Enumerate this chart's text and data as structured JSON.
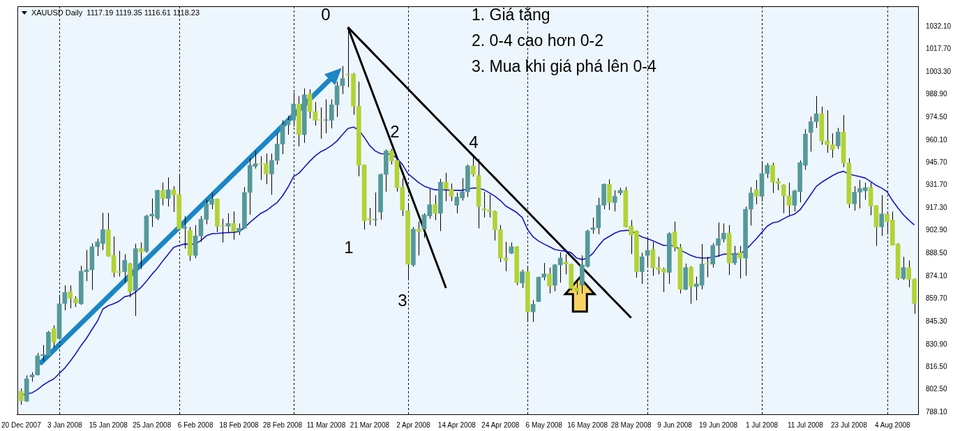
{
  "chart_data": {
    "type": "candlestick",
    "title": "XAUUSD Daily  1117.19 1119.35 1116.61 1118.23",
    "categories": [
      "20 Dec 2007",
      null,
      null,
      null,
      null,
      null,
      null,
      null,
      "3 Jan 2008",
      null,
      null,
      null,
      null,
      null,
      null,
      null,
      "15 Jan 2008",
      null,
      null,
      null,
      null,
      null,
      null,
      null,
      "25 Jan 2008",
      null,
      null,
      null,
      null,
      null,
      null,
      null,
      "6 Feb 2008",
      null,
      null,
      null,
      null,
      null,
      null,
      null,
      "18 Feb 2008",
      null,
      null,
      null,
      null,
      null,
      null,
      null,
      "28 Feb 2008",
      null,
      null,
      null,
      null,
      null,
      null,
      null,
      "11 Mar 2008",
      null,
      null,
      null,
      null,
      null,
      null,
      null,
      "21 Mar 2008",
      null,
      null,
      null,
      null,
      null,
      null,
      null,
      "2 Apr 2008",
      null,
      null,
      null,
      null,
      null,
      null,
      null,
      "14 Apr 2008",
      null,
      null,
      null,
      null,
      null,
      null,
      null,
      "24 Apr 2008",
      null,
      null,
      null,
      null,
      null,
      null,
      null,
      "6 May 2008",
      null,
      null,
      null,
      null,
      null,
      null,
      null,
      "16 May 2008",
      null,
      null,
      null,
      null,
      null,
      null,
      null,
      "28 May 2008",
      null,
      null,
      null,
      null,
      null,
      null,
      null,
      "9 Jun 2008",
      null,
      null,
      null,
      null,
      null,
      null,
      null,
      "19 Jun 2008",
      null,
      null,
      null,
      null,
      null,
      null,
      null,
      "1 Jul 2008",
      null,
      null,
      null,
      null,
      null,
      null,
      null,
      "11 Jul 2008",
      null,
      null,
      null,
      null,
      null,
      null,
      null,
      "23 Jul 2008",
      null,
      null,
      null,
      null,
      null,
      null,
      null,
      "4 Aug 2008",
      null,
      null,
      null,
      null
    ],
    "ohlc": [
      [
        801.3,
        803.0,
        792.7,
        795.3
      ],
      [
        795.0,
        811.3,
        794.5,
        809.1
      ],
      [
        810.3,
        813.3,
        807.3,
        811.6
      ],
      [
        811.6,
        825.4,
        811.3,
        823.7
      ],
      [
        823.7,
        830.5,
        820.2,
        824.5
      ],
      [
        824.0,
        839.4,
        823.7,
        838.6
      ],
      [
        840.8,
        842.9,
        828.8,
        832.2
      ],
      [
        834.6,
        862.3,
        833.9,
        856.6
      ],
      [
        856.8,
        868.3,
        852.5,
        863.8
      ],
      [
        864.3,
        868.3,
        853.7,
        860.0
      ],
      [
        859.7,
        861.4,
        854.6,
        857.1
      ],
      [
        856.6,
        880.7,
        855.9,
        877.2
      ],
      [
        876.9,
        890.6,
        870.9,
        878.1
      ],
      [
        878.1,
        894.9,
        865.4,
        892.7
      ],
      [
        892.7,
        897.8,
        886.8,
        895.8
      ],
      [
        894.7,
        914.1,
        890.6,
        903.5
      ],
      [
        903.5,
        914.1,
        886.3,
        886.7
      ],
      [
        887.2,
        899.2,
        873.4,
        876.4
      ],
      [
        876.9,
        890.1,
        873.8,
        876.4
      ],
      [
        876.9,
        888.0,
        870.0,
        884.1
      ],
      [
        882.0,
        882.5,
        860.6,
        864.3
      ],
      [
        864.9,
        894.6,
        848.9,
        891.5
      ],
      [
        891.5,
        895.4,
        878.6,
        889.4
      ],
      [
        889.8,
        912.9,
        888.9,
        912.1
      ],
      [
        912.1,
        923.2,
        905.2,
        913.3
      ],
      [
        910.7,
        928.7,
        909.5,
        928.4
      ],
      [
        928.4,
        933.2,
        918.9,
        923.2
      ],
      [
        923.2,
        936.6,
        918.1,
        928.7
      ],
      [
        928.7,
        931.0,
        914.7,
        925.3
      ],
      [
        925.8,
        937.8,
        903.5,
        903.8
      ],
      [
        904.3,
        912.1,
        891.5,
        905.2
      ],
      [
        903.0,
        905.2,
        883.7,
        887.2
      ],
      [
        887.2,
        906.4,
        885.5,
        899.5
      ],
      [
        899.5,
        912.1,
        895.8,
        910.0
      ],
      [
        910.0,
        922.4,
        906.9,
        919.8
      ],
      [
        919.5,
        926.7,
        916.4,
        922.9
      ],
      [
        922.9,
        923.2,
        901.8,
        905.7
      ],
      [
        906.1,
        910.4,
        895.4,
        905.7
      ],
      [
        905.7,
        913.8,
        901.3,
        907.4
      ],
      [
        907.4,
        915.0,
        897.1,
        902.3
      ],
      [
        902.3,
        907.4,
        900.1,
        904.4
      ],
      [
        904.4,
        930.4,
        904.0,
        927.0
      ],
      [
        927.0,
        949.0,
        912.9,
        944.2
      ],
      [
        943.5,
        953.3,
        942.1,
        945.2
      ],
      [
        945.2,
        949.9,
        934.9,
        944.9
      ],
      [
        945.2,
        951.6,
        932.2,
        938.7
      ],
      [
        938.7,
        951.6,
        925.5,
        947.3
      ],
      [
        947.3,
        964.4,
        944.7,
        957.6
      ],
      [
        957.6,
        972.7,
        951.2,
        969.9
      ],
      [
        969.9,
        975.6,
        963.6,
        972.7
      ],
      [
        972.7,
        990.2,
        968.7,
        983.0
      ],
      [
        983.0,
        988.0,
        956.2,
        963.6
      ],
      [
        963.6,
        992.8,
        958.4,
        988.8
      ],
      [
        989.3,
        992.3,
        973.9,
        978.2
      ],
      [
        978.2,
        984.2,
        969.3,
        972.7
      ],
      [
        973.0,
        980.8,
        961.0,
        972.7
      ],
      [
        972.7,
        985.9,
        964.4,
        973.0
      ],
      [
        972.7,
        985.9,
        967.5,
        982.5
      ],
      [
        982.5,
        997.1,
        974.7,
        994.5
      ],
      [
        994.5,
        1007.0,
        989.3,
        999.1
      ],
      [
        1001.9,
        1031.5,
        993.6,
        1001.5
      ],
      [
        1001.9,
        1002.6,
        976.1,
        981.6
      ],
      [
        981.6,
        997.1,
        937.3,
        944.2
      ],
      [
        944.4,
        944.7,
        903.5,
        909.2
      ],
      [
        910.4,
        917.2,
        906.4,
        909.7
      ],
      [
        909.7,
        927.0,
        905.7,
        910.0
      ],
      [
        914.6,
        939.0,
        909.8,
        938.4
      ],
      [
        938.4,
        954.2,
        927.5,
        953.3
      ],
      [
        953.3,
        954.5,
        944.7,
        947.0
      ],
      [
        947.3,
        948.1,
        927.5,
        930.1
      ],
      [
        930.4,
        936.1,
        912.1,
        916.0
      ],
      [
        915.5,
        920.2,
        871.7,
        881.7
      ],
      [
        881.2,
        905.2,
        880.0,
        903.8
      ],
      [
        903.8,
        908.6,
        887.2,
        902.3
      ],
      [
        903.8,
        913.8,
        898.3,
        912.9
      ],
      [
        912.1,
        929.2,
        910.4,
        919.3
      ],
      [
        919.3,
        925.3,
        909.5,
        913.8
      ],
      [
        913.8,
        935.6,
        902.6,
        933.5
      ],
      [
        933.5,
        939.5,
        921.5,
        929.2
      ],
      [
        929.2,
        932.7,
        921.5,
        924.6
      ],
      [
        918.9,
        927.0,
        913.8,
        924.1
      ],
      [
        923.6,
        936.1,
        921.9,
        927.5
      ],
      [
        927.5,
        944.7,
        924.1,
        943.8
      ],
      [
        943.8,
        950.7,
        937.0,
        938.4
      ],
      [
        937.8,
        948.1,
        904.3,
        918.1
      ],
      [
        916.7,
        927.5,
        911.2,
        916.0
      ],
      [
        916.0,
        925.8,
        911.2,
        915.0
      ],
      [
        915.0,
        915.5,
        896.6,
        903.5
      ],
      [
        903.5,
        906.4,
        882.9,
        885.5
      ],
      [
        885.5,
        895.8,
        877.2,
        884.1
      ],
      [
        888.6,
        895.4,
        888.0,
        892.7
      ],
      [
        892.7,
        893.0,
        868.3,
        870.0
      ],
      [
        869.7,
        878.2,
        866.6,
        876.9
      ],
      [
        876.9,
        880.7,
        846.0,
        851.5
      ],
      [
        851.5,
        858.9,
        845.1,
        856.3
      ],
      [
        858.0,
        873.8,
        857.7,
        873.4
      ],
      [
        873.4,
        882.4,
        871.4,
        875.5
      ],
      [
        875.5,
        879.5,
        863.1,
        867.8
      ],
      [
        868.3,
        881.7,
        864.5,
        881.2
      ],
      [
        881.2,
        889.2,
        870.0,
        885.5
      ],
      [
        882.9,
        888.0,
        875.2,
        881.7
      ],
      [
        881.7,
        882.0,
        864.9,
        866.2
      ],
      [
        866.6,
        870.9,
        862.3,
        864.5
      ],
      [
        868.3,
        887.2,
        863.1,
        881.2
      ],
      [
        880.3,
        903.5,
        879.5,
        902.6
      ],
      [
        903.5,
        911.2,
        900.9,
        904.7
      ],
      [
        904.7,
        923.6,
        900.6,
        918.9
      ],
      [
        918.9,
        932.7,
        916.4,
        932.2
      ],
      [
        932.2,
        935.3,
        916.0,
        920.7
      ],
      [
        920.7,
        928.4,
        915.0,
        924.6
      ],
      [
        926.7,
        930.1,
        925.3,
        928.4
      ],
      [
        928.4,
        930.4,
        904.9,
        905.2
      ],
      [
        905.7,
        909.5,
        888.0,
        900.1
      ],
      [
        902.6,
        903.0,
        873.1,
        876.9
      ],
      [
        876.9,
        888.9,
        869.2,
        886.3
      ],
      [
        887.2,
        897.5,
        879.5,
        890.3
      ],
      [
        890.9,
        895.8,
        874.3,
        879.5
      ],
      [
        879.5,
        886.3,
        875.2,
        878.3
      ],
      [
        878.6,
        879.5,
        864.0,
        876.6
      ],
      [
        876.4,
        901.8,
        869.2,
        901.0
      ],
      [
        902.1,
        908.6,
        889.8,
        892.3
      ],
      [
        892.3,
        894.4,
        863.1,
        865.7
      ],
      [
        865.7,
        882.0,
        865.2,
        879.5
      ],
      [
        879.5,
        880.3,
        856.6,
        867.4
      ],
      [
        867.4,
        873.8,
        858.8,
        869.2
      ],
      [
        868.3,
        894.4,
        865.7,
        881.7
      ],
      [
        882.0,
        886.3,
        873.4,
        881.7
      ],
      [
        881.7,
        894.9,
        879.5,
        893.5
      ],
      [
        893.5,
        908.1,
        886.3,
        897.8
      ],
      [
        897.5,
        907.4,
        895.4,
        901.3
      ],
      [
        901.3,
        906.4,
        874.8,
        882.4
      ],
      [
        882.4,
        893.2,
        881.2,
        888.0
      ],
      [
        888.9,
        893.2,
        872.6,
        885.5
      ],
      [
        885.5,
        918.1,
        874.3,
        916.4
      ],
      [
        916.4,
        930.4,
        906.1,
        926.7
      ],
      [
        928.7,
        934.9,
        919.5,
        924.6
      ],
      [
        924.6,
        945.6,
        921.2,
        939.0
      ],
      [
        939.0,
        945.6,
        936.1,
        944.2
      ],
      [
        944.2,
        945.9,
        926.7,
        933.5
      ],
      [
        933.9,
        936.1,
        928.4,
        932.7
      ],
      [
        931.8,
        932.2,
        913.8,
        924.9
      ],
      [
        924.9,
        933.2,
        912.6,
        918.9
      ],
      [
        918.9,
        928.7,
        915.0,
        928.0
      ],
      [
        927.5,
        947.3,
        920.7,
        945.9
      ],
      [
        944.2,
        967.0,
        941.3,
        964.0
      ],
      [
        965.0,
        975.1,
        952.8,
        971.8
      ],
      [
        971.8,
        988.0,
        967.9,
        976.8
      ],
      [
        976.8,
        981.3,
        957.2,
        959.6
      ],
      [
        959.6,
        979.0,
        952.1,
        957.2
      ],
      [
        957.2,
        964.4,
        949.0,
        954.1
      ],
      [
        956.4,
        967.9,
        954.5,
        965.3
      ],
      [
        965.3,
        976.0,
        943.0,
        945.6
      ],
      [
        945.6,
        948.7,
        917.2,
        919.8
      ],
      [
        919.8,
        931.0,
        915.5,
        927.2
      ],
      [
        927.2,
        934.9,
        916.9,
        929.6
      ],
      [
        928.0,
        933.2,
        922.4,
        930.1
      ],
      [
        930.1,
        933.2,
        912.6,
        918.4
      ],
      [
        918.6,
        918.9,
        893.2,
        905.2
      ],
      [
        905.2,
        925.3,
        899.6,
        913.4
      ],
      [
        913.4,
        914.6,
        900.4,
        908.6
      ],
      [
        909.5,
        914.9,
        893.7,
        893.7
      ],
      [
        894.4,
        894.9,
        871.7,
        872.6
      ],
      [
        872.6,
        886.3,
        871.7,
        879.5
      ],
      [
        879.5,
        884.0,
        867.1,
        872.1
      ],
      [
        872.1,
        872.6,
        850.3,
        856.8
      ]
    ],
    "colors": [
      "#b2d236",
      "#55999b",
      "#55999b",
      "#55999b",
      "#55999b",
      "#55999b",
      "#b2d236",
      "#55999b",
      "#55999b",
      "#b2d236",
      "#b2d236",
      "#55999b",
      "#55999b",
      "#55999b",
      "#55999b",
      "#55999b",
      "#b2d236",
      "#b2d236",
      "#b2d236",
      "#55999b",
      "#b2d236",
      "#55999b",
      "#b2d236",
      "#55999b",
      "#55999b",
      "#55999b",
      "#b2d236",
      "#55999b",
      "#b2d236",
      "#b2d236",
      "#55999b",
      "#b2d236",
      "#55999b",
      "#55999b",
      "#55999b",
      "#55999b",
      "#b2d236",
      "#b2d236",
      "#55999b",
      "#b2d236",
      "#55999b",
      "#55999b",
      "#55999b",
      "#55999b",
      "#b2d236",
      "#b2d236",
      "#55999b",
      "#55999b",
      "#55999b",
      "#55999b",
      "#55999b",
      "#b2d236",
      "#55999b",
      "#b2d236",
      "#b2d236",
      "#b2d236",
      "#55999b",
      "#55999b",
      "#55999b",
      "#55999b",
      "#b2d236",
      "#b2d236",
      "#b2d236",
      "#b2d236",
      "#b2d236",
      "#55999b",
      "#55999b",
      "#55999b",
      "#b2d236",
      "#b2d236",
      "#b2d236",
      "#b2d236",
      "#55999b",
      "#b2d236",
      "#55999b",
      "#55999b",
      "#b2d236",
      "#55999b",
      "#b2d236",
      "#b2d236",
      "#55999b",
      "#55999b",
      "#55999b",
      "#b2d236",
      "#b2d236",
      "#b2d236",
      "#b2d236",
      "#b2d236",
      "#b2d236",
      "#b2d236",
      "#55999b",
      "#b2d236",
      "#55999b",
      "#b2d236",
      "#55999b",
      "#55999b",
      "#55999b",
      "#b2d236",
      "#55999b",
      "#55999b",
      "#b2d236",
      "#b2d236",
      "#b2d236",
      "#55999b",
      "#55999b",
      "#55999b",
      "#55999b",
      "#55999b",
      "#b2d236",
      "#55999b",
      "#55999b",
      "#b2d236",
      "#b2d236",
      "#b2d236",
      "#55999b",
      "#55999b",
      "#b2d236",
      "#b2d236",
      "#b2d236",
      "#55999b",
      "#b2d236",
      "#b2d236",
      "#55999b",
      "#b2d236",
      "#55999b",
      "#55999b",
      "#b2d236",
      "#55999b",
      "#55999b",
      "#55999b",
      "#b2d236",
      "#55999b",
      "#b2d236",
      "#55999b",
      "#55999b",
      "#b2d236",
      "#55999b",
      "#55999b",
      "#b2d236",
      "#b2d236",
      "#b2d236",
      "#b2d236",
      "#55999b",
      "#55999b",
      "#55999b",
      "#55999b",
      "#55999b",
      "#b2d236",
      "#b2d236",
      "#b2d236",
      "#55999b",
      "#b2d236",
      "#b2d236",
      "#55999b",
      "#55999b",
      "#55999b",
      "#b2d236",
      "#b2d236",
      "#55999b",
      "#b2d236",
      "#b2d236",
      "#b2d236",
      "#55999b",
      "#b2d236",
      "#b2d236"
    ],
    "series": [
      {
        "type": "line",
        "color": "#1414cc",
        "values": [
          798.7,
          799.6,
          800.3,
          802.3,
          805.1,
          807.3,
          809.1,
          812.5,
          815.9,
          820.2,
          825.0,
          830.2,
          834.8,
          840.3,
          845.6,
          853.2,
          855.4,
          856.6,
          858.3,
          861.1,
          861.8,
          864.0,
          866.9,
          870.9,
          875.2,
          879.0,
          883.7,
          888.0,
          892.3,
          893.5,
          894.4,
          894.2,
          894.4,
          896.6,
          899.6,
          900.9,
          901.1,
          901.4,
          901.6,
          901.8,
          902.3,
          904.7,
          908.1,
          910.9,
          913.8,
          915.5,
          918.1,
          920.7,
          924.9,
          930.4,
          937.0,
          939.2,
          943.0,
          946.8,
          950.2,
          952.8,
          954.5,
          956.7,
          959.6,
          963.6,
          967.5,
          968.4,
          966.5,
          961.9,
          956.7,
          953.3,
          951.6,
          951.4,
          951.1,
          948.7,
          944.7,
          939.0,
          936.1,
          933.2,
          931.0,
          929.8,
          928.7,
          928.7,
          928.6,
          928.4,
          928.4,
          928.4,
          929.2,
          929.9,
          929.8,
          928.7,
          926.7,
          924.6,
          921.9,
          918.4,
          916.4,
          914.3,
          911.2,
          903.5,
          898.9,
          896.3,
          894.4,
          892.7,
          890.9,
          890.3,
          889.9,
          888.9,
          885.5,
          884.6,
          885.5,
          888.6,
          893.2,
          897.2,
          899.2,
          901.3,
          902.6,
          903.0,
          903.0,
          900.6,
          898.9,
          897.8,
          896.5,
          894.9,
          893.5,
          893.7,
          893.2,
          890.6,
          888.9,
          887.2,
          886.0,
          885.5,
          885.5,
          886.2,
          886.8,
          888.0,
          888.0,
          888.0,
          888.0,
          890.6,
          894.1,
          897.8,
          901.8,
          905.7,
          907.8,
          908.5,
          910.4,
          912.1,
          913.3,
          916.0,
          920.7,
          925.8,
          930.8,
          933.5,
          935.6,
          937.7,
          939.5,
          940.4,
          938.7,
          937.8,
          937.0,
          936.1,
          933.9,
          931.5,
          929.8,
          927.5,
          921.9,
          917.2,
          912.9,
          909.5,
          906.4
        ]
      },
      {
        "type": "line",
        "color": "#000000",
        "values": [
          null,
          null,
          null,
          null,
          null,
          null,
          null,
          null,
          null,
          null,
          null,
          null,
          null,
          null,
          null,
          null,
          null,
          null,
          null,
          null,
          null,
          null,
          null,
          null,
          null,
          null,
          null,
          null,
          null,
          null,
          null,
          null,
          null,
          null,
          null,
          null,
          null,
          null,
          null,
          null,
          null,
          null,
          null,
          null,
          null,
          null,
          null,
          null,
          null,
          null,
          null,
          null,
          null,
          null,
          null,
          null,
          null,
          null,
          null,
          null,
          1031.5,
          1022.3,
          1013.2,
          1004.0,
          994.9,
          985.7,
          976.5,
          967.4,
          958.2,
          949.1,
          939.9,
          930.7,
          921.6,
          912.4,
          903.3,
          894.1,
          884.9,
          875.8,
          866.6,
          null,
          null,
          null,
          null,
          null,
          null,
          null,
          null,
          null,
          null,
          null,
          null,
          null,
          null,
          null,
          null,
          null,
          null,
          null,
          null,
          null,
          null,
          null,
          null,
          null,
          null,
          null,
          null,
          null,
          null,
          null,
          null,
          null,
          null,
          null,
          null,
          null,
          null,
          null,
          null,
          null,
          null,
          null,
          null,
          null,
          null,
          null,
          null,
          null,
          null,
          null,
          null,
          null,
          null,
          null,
          null,
          null,
          null,
          null,
          null,
          null,
          null,
          null,
          null,
          null,
          null,
          null,
          null,
          null,
          null,
          null,
          null,
          null,
          null,
          null,
          null,
          null,
          null,
          null,
          null,
          null,
          null,
          null,
          null,
          null,
          null
        ]
      },
      {
        "type": "line",
        "color": "#000000",
        "values": [
          null,
          null,
          null,
          null,
          null,
          null,
          null,
          null,
          null,
          null,
          null,
          null,
          null,
          null,
          null,
          null,
          null,
          null,
          null,
          null,
          null,
          null,
          null,
          null,
          null,
          null,
          null,
          null,
          null,
          null,
          null,
          null,
          null,
          null,
          null,
          null,
          null,
          null,
          null,
          null,
          null,
          null,
          null,
          null,
          null,
          null,
          null,
          null,
          null,
          null,
          null,
          null,
          null,
          null,
          null,
          null,
          null,
          null,
          null,
          null,
          1031.5,
          1028.0,
          1024.4,
          1020.9,
          1017.4,
          1013.8,
          1010.3,
          1006.8,
          1003.2,
          999.7,
          996.2,
          992.6,
          989.1,
          985.5,
          982.0,
          978.5,
          974.9,
          971.4,
          967.9,
          964.3,
          960.8,
          957.3,
          953.7,
          950.2,
          946.7,
          943.1,
          939.6,
          936.1,
          932.5,
          929.0,
          925.5,
          921.9,
          918.4,
          914.9,
          911.3,
          907.8,
          904.3,
          900.7,
          897.2,
          893.7,
          890.1,
          886.6,
          883.1,
          879.5,
          876.0,
          872.4,
          868.9,
          865.4,
          861.8,
          858.3,
          854.8,
          851.2,
          847.7,
          null,
          null,
          null,
          null,
          null,
          null,
          null,
          null,
          null,
          null,
          null,
          null,
          null,
          null,
          null,
          null,
          null,
          null,
          null,
          null,
          null,
          null,
          null,
          null,
          null,
          null,
          null,
          null,
          null,
          null,
          null,
          null,
          null,
          null,
          null,
          null,
          null,
          null,
          null,
          null,
          null,
          null,
          null,
          null,
          null,
          null,
          null,
          null,
          null,
          null,
          null,
          null
        ]
      }
    ],
    "ylim": [
      786.7,
      1044.8
    ],
    "yticks": [
      {
        "value": 1032.1,
        "label": "1032.10"
      },
      {
        "value": 1017.7,
        "label": "1017.70"
      },
      {
        "value": 1003.3,
        "label": "1003.30"
      },
      {
        "value": 988.9,
        "label": "988.90"
      },
      {
        "value": 974.5,
        "label": "974.50"
      },
      {
        "value": 960.1,
        "label": "960.10"
      },
      {
        "value": 945.7,
        "label": "945.70"
      },
      {
        "value": 931.7,
        "label": "931.70"
      },
      {
        "value": 917.3,
        "label": "917.30"
      },
      {
        "value": 902.9,
        "label": "902.90"
      },
      {
        "value": 888.5,
        "label": "888.50"
      },
      {
        "value": 874.1,
        "label": "874.10"
      },
      {
        "value": 859.7,
        "label": "859.70"
      },
      {
        "value": 845.3,
        "label": "845.30"
      },
      {
        "value": 830.9,
        "label": "830.90"
      },
      {
        "value": 816.5,
        "label": "816.50"
      },
      {
        "value": 802.5,
        "label": "802.50"
      },
      {
        "value": 788.1,
        "label": "788.10"
      }
    ],
    "annotations": [
      "0",
      "1",
      "2",
      "3",
      "4",
      "1. Giá tăng",
      "2. 0-4 cao hơn 0-2",
      "3. Mua khi giá phá lên 0-4"
    ],
    "legend": false
  }
}
